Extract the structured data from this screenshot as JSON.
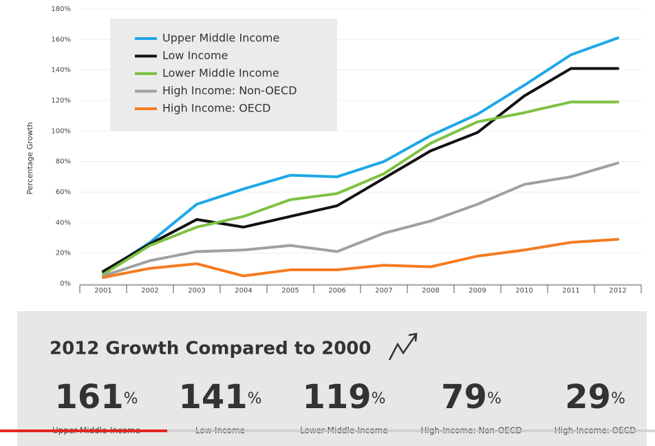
{
  "chart_data": {
    "type": "line",
    "y_label": "Percentage Growth",
    "categories": [
      "2001",
      "2002",
      "2003",
      "2004",
      "2005",
      "2006",
      "2007",
      "2008",
      "2009",
      "2010",
      "2011",
      "2012"
    ],
    "series": [
      {
        "name": "Upper Middle Income",
        "color": "#1ea7e8",
        "values": [
          7,
          27,
          52,
          62,
          71,
          70,
          80,
          97,
          111,
          130,
          150,
          161
        ]
      },
      {
        "name": "Low Income",
        "color": "#111111",
        "values": [
          8,
          26,
          42,
          37,
          44,
          51,
          69,
          87,
          99,
          123,
          141,
          141
        ]
      },
      {
        "name": "Lower Middle Income",
        "color": "#7dc242",
        "values": [
          6,
          25,
          37,
          44,
          55,
          59,
          72,
          92,
          106,
          112,
          119,
          119
        ]
      },
      {
        "name": "High Income: Non-OECD",
        "color": "#a0a0a0",
        "values": [
          5,
          15,
          21,
          22,
          25,
          21,
          33,
          41,
          52,
          65,
          70,
          79
        ]
      },
      {
        "name": "High Income: OECD",
        "color": "#f47b20",
        "values": [
          4,
          10,
          13,
          5,
          9,
          9,
          12,
          11,
          18,
          22,
          27,
          29
        ]
      }
    ],
    "ylim": [
      0,
      180
    ],
    "yticks": [
      {
        "value": 0,
        "label": "0%"
      },
      {
        "value": 20,
        "label": "20%"
      },
      {
        "value": 40,
        "label": "40%"
      },
      {
        "value": 60,
        "label": "60%"
      },
      {
        "value": 80,
        "label": "80%"
      },
      {
        "value": 100,
        "label": "100%"
      },
      {
        "value": 120,
        "label": "120%"
      },
      {
        "value": 140,
        "label": "140%"
      },
      {
        "value": 160,
        "label": "160%"
      },
      {
        "value": 180,
        "label": "180%"
      }
    ],
    "grid": true
  },
  "summary": {
    "title": "2012 Growth Compared to 2000",
    "items": [
      {
        "value": 161,
        "unit": "%",
        "label": "Upper-Middle-Income"
      },
      {
        "value": 141,
        "unit": "%",
        "label": "Low-Income"
      },
      {
        "value": 119,
        "unit": "%",
        "label": "Lower-Middle-Income"
      },
      {
        "value": 79,
        "unit": "%",
        "label": "High-Income: Non-OECD"
      },
      {
        "value": 29,
        "unit": "%",
        "label": "High-Income: OECD"
      }
    ]
  }
}
